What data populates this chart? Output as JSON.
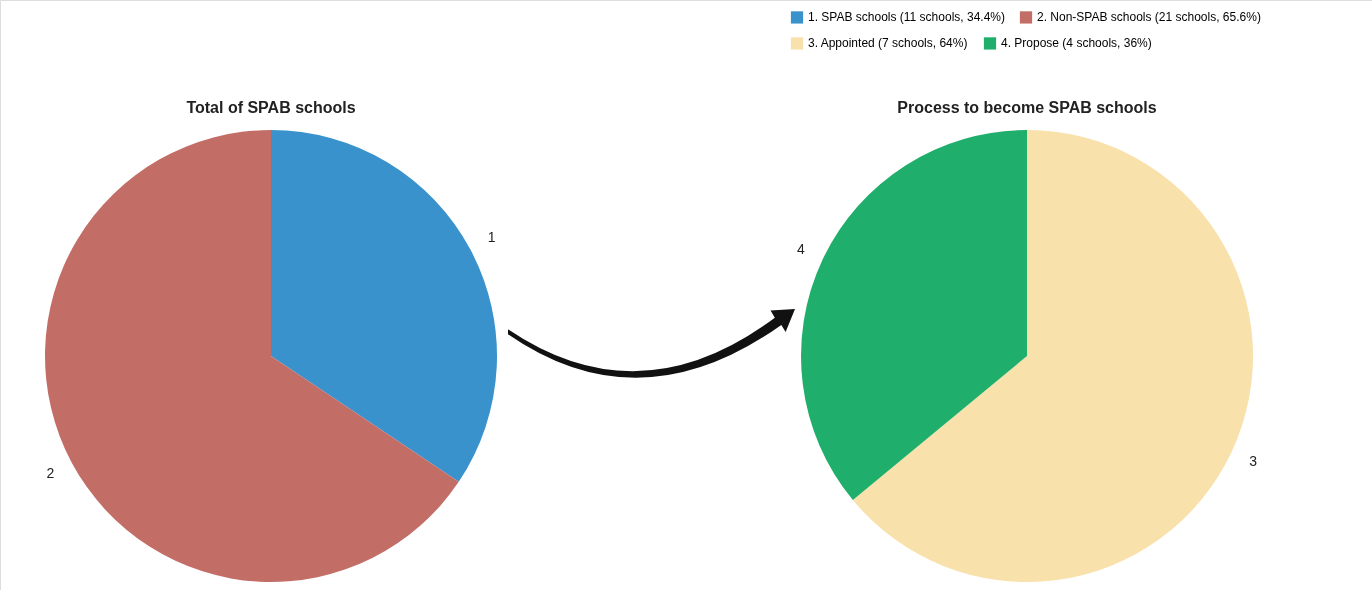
{
  "chart_data": [
    {
      "type": "pie",
      "title": "Total of SPAB schools",
      "categories": [
        "1. SPAB schools (11 schools, 34.4%)",
        "2. Non-SPAB schools (21 schools, 65.6%)"
      ],
      "values": [
        34.4,
        65.6
      ],
      "colors": [
        "#3a92cc",
        "#c26e67"
      ],
      "annotations": [
        "1",
        "2"
      ],
      "legend": "top right"
    },
    {
      "type": "pie",
      "title": "Process to become SPAB schools",
      "categories": [
        "3. Appointed (7 schools, 64%)",
        "4. Propose (4 schools, 36%)"
      ],
      "values": [
        64,
        36
      ],
      "colors": [
        "#f8e1aa",
        "#1fae6c"
      ],
      "annotations": [
        "3",
        "4"
      ],
      "legend": "top"
    }
  ]
}
